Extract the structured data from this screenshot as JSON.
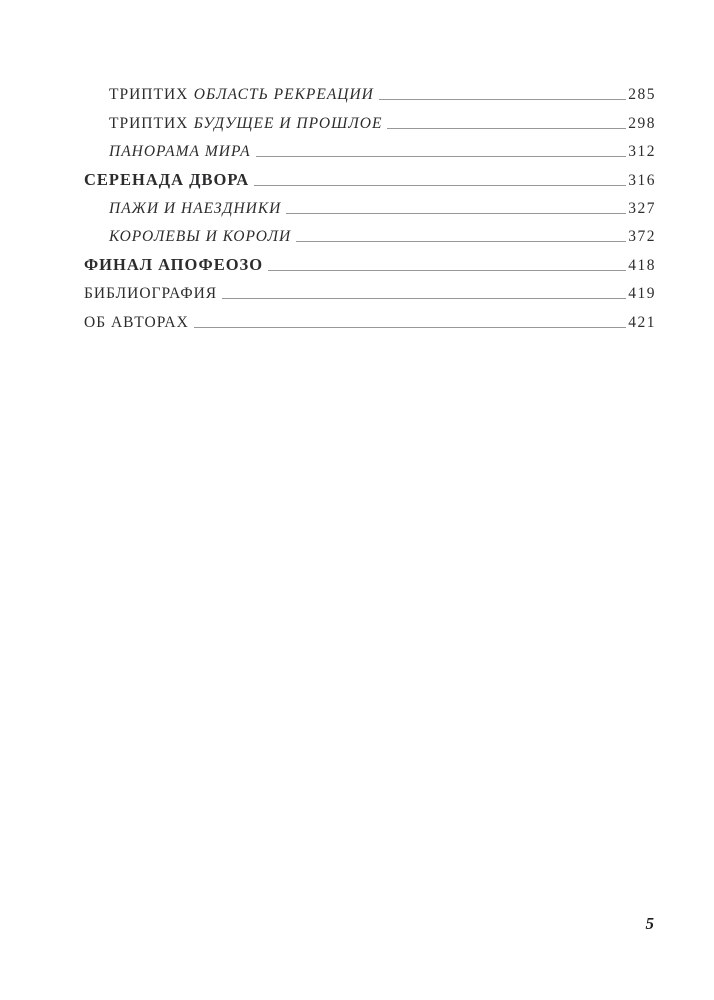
{
  "toc": {
    "entries": [
      {
        "prefix": "ТРИПТИХ",
        "title": "ОБЛАСТЬ РЕКРЕАЦИИ",
        "page": "285"
      },
      {
        "prefix": "ТРИПТИХ",
        "title": "БУДУЩЕЕ И ПРОШЛОЕ",
        "page": "298"
      },
      {
        "title": "ПАНОРАМА МИРА",
        "page": "312"
      },
      {
        "title": "СЕРЕНАДА ДВОРА",
        "page": "316"
      },
      {
        "title": "ПАЖИ И НАЕЗДНИКИ",
        "page": "327"
      },
      {
        "title": "КОРОЛЕВЫ И КОРОЛИ",
        "page": "372"
      },
      {
        "title": "ФИНАЛ АПОФЕОЗО",
        "page": "418"
      },
      {
        "title": "БИБЛИОГРАФИЯ",
        "page": "419"
      },
      {
        "title": "ОБ АВТОРАХ",
        "page": "421"
      }
    ]
  },
  "footer": {
    "page_number": "5"
  },
  "colors": {
    "background": "#ffffff",
    "text": "#2c2c2e",
    "leader": "#97979c"
  }
}
